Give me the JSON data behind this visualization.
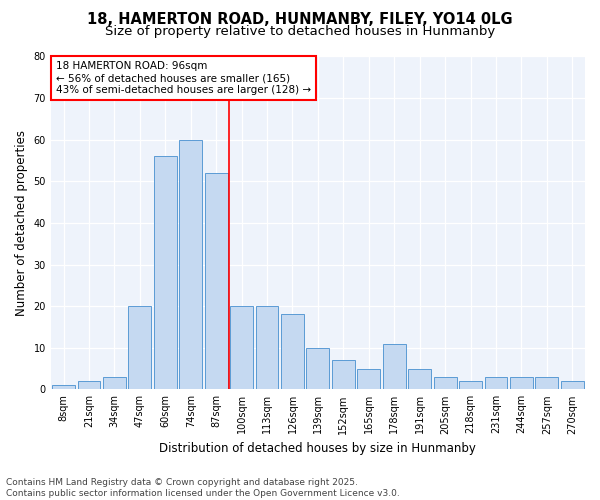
{
  "title_line1": "18, HAMERTON ROAD, HUNMANBY, FILEY, YO14 0LG",
  "title_line2": "Size of property relative to detached houses in Hunmanby",
  "xlabel": "Distribution of detached houses by size in Hunmanby",
  "ylabel": "Number of detached properties",
  "categories": [
    "8sqm",
    "21sqm",
    "34sqm",
    "47sqm",
    "60sqm",
    "74sqm",
    "87sqm",
    "100sqm",
    "113sqm",
    "126sqm",
    "139sqm",
    "152sqm",
    "165sqm",
    "178sqm",
    "191sqm",
    "205sqm",
    "218sqm",
    "231sqm",
    "244sqm",
    "257sqm",
    "270sqm"
  ],
  "values": [
    1,
    2,
    3,
    20,
    56,
    60,
    52,
    20,
    20,
    18,
    10,
    7,
    5,
    11,
    5,
    3,
    2,
    3,
    3,
    3,
    2
  ],
  "bar_color": "#c5d9f1",
  "bar_edge_color": "#5b9bd5",
  "annotation_title": "18 HAMERTON ROAD: 96sqm",
  "annotation_line2": "← 56% of detached houses are smaller (165)",
  "annotation_line3": "43% of semi-detached houses are larger (128) →",
  "ylim": [
    0,
    80
  ],
  "yticks": [
    0,
    10,
    20,
    30,
    40,
    50,
    60,
    70,
    80
  ],
  "footer_line1": "Contains HM Land Registry data © Crown copyright and database right 2025.",
  "footer_line2": "Contains public sector information licensed under the Open Government Licence v3.0.",
  "bg_color": "#ffffff",
  "plot_bg_color": "#eef3fb",
  "grid_color": "#ffffff",
  "title_fontsize": 10.5,
  "subtitle_fontsize": 9.5,
  "axis_label_fontsize": 8.5,
  "tick_fontsize": 7,
  "footer_fontsize": 6.5,
  "annotation_fontsize": 7.5
}
